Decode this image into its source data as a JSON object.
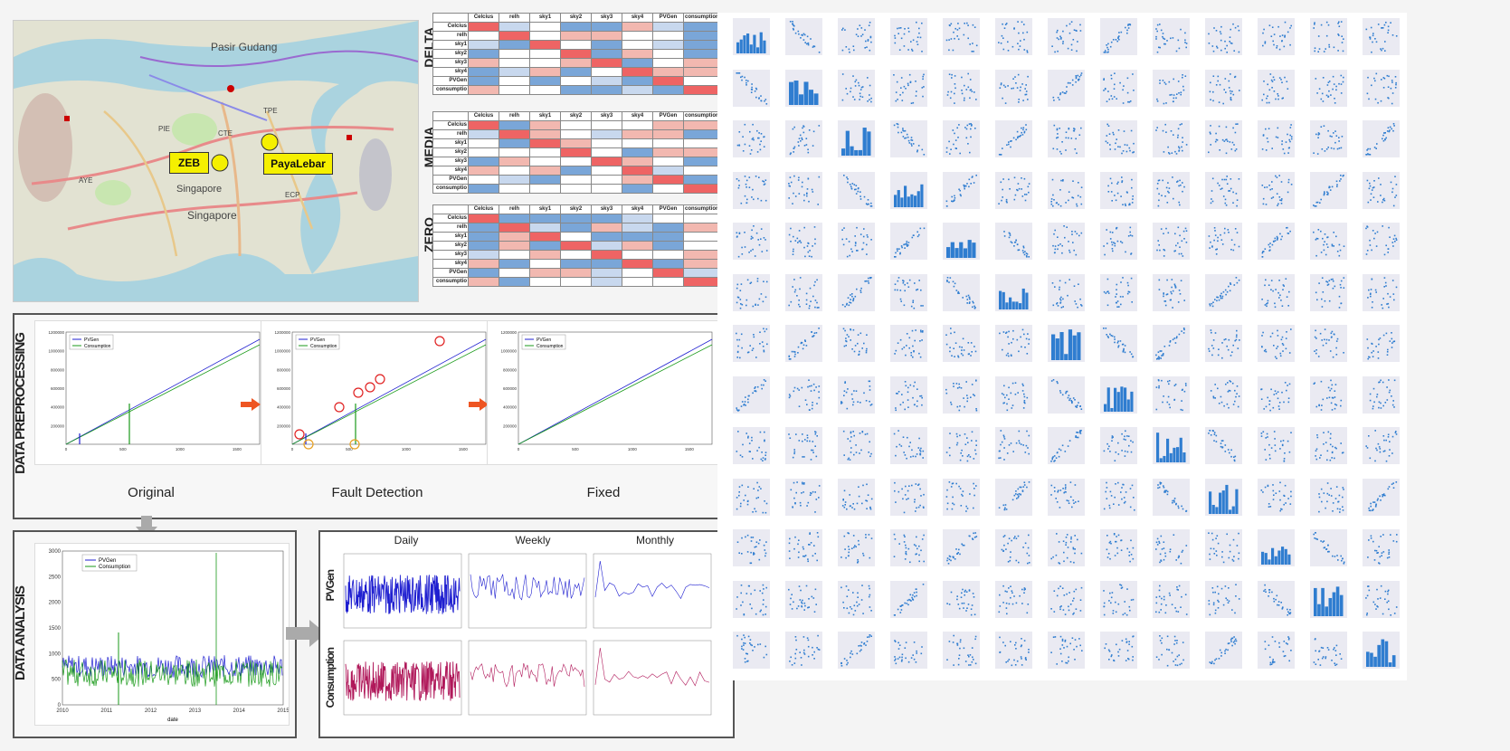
{
  "map": {
    "places": [
      "Pasir Gudang",
      "Singapore",
      "Singapore",
      "TPE",
      "PIE",
      "CTE",
      "AYE",
      "ECP"
    ],
    "stations": [
      "ZEB",
      "PayaLebar"
    ]
  },
  "tables": {
    "group_labels": [
      "DELTA",
      "MEDIA",
      "ZERO"
    ],
    "columns": [
      "",
      "Celcius",
      "relh",
      "sky1",
      "sky2",
      "sky3",
      "sky4",
      "PVGen",
      "consumption"
    ],
    "rows": [
      "Celcius",
      "relh",
      "sky1",
      "sky2",
      "sky3",
      "sky4",
      "PVGen",
      "consumptio"
    ]
  },
  "preprocessing": {
    "panel_title": "DATA PREPROCESSING",
    "captions": [
      "Original",
      "Fault Detection",
      "Fixed"
    ],
    "legend": [
      "PVGen",
      "Consumption"
    ],
    "y_ticks": [
      "1200000",
      "1000000",
      "800000",
      "600000",
      "400000",
      "200000"
    ],
    "x_ticks_a": [
      "0",
      "500",
      "1000",
      "1500"
    ],
    "x_ticks_b": [
      "0",
      "500",
      "1000",
      "1500"
    ]
  },
  "analysis": {
    "panel_title": "DATA ANALYSIS",
    "legend": [
      "PVGen",
      "Consumption"
    ],
    "y_ticks": [
      "3000",
      "2500",
      "2000",
      "1500",
      "1000",
      "500",
      "0"
    ],
    "x_ticks": [
      "2010",
      "2011",
      "2012",
      "2013",
      "2014",
      "2015"
    ],
    "x_label": "date",
    "column_titles": [
      "Daily",
      "Weekly",
      "Monthly"
    ],
    "row_titles": [
      "PVGen",
      "Consumption"
    ]
  },
  "colors": {
    "blue": "#1f1fd0",
    "green": "#1a9a1a",
    "crimson": "#b0185a",
    "pair_blue": "#2f7dd0",
    "red_arrow": "#ee5522",
    "station_yellow": "#f5f000"
  }
}
